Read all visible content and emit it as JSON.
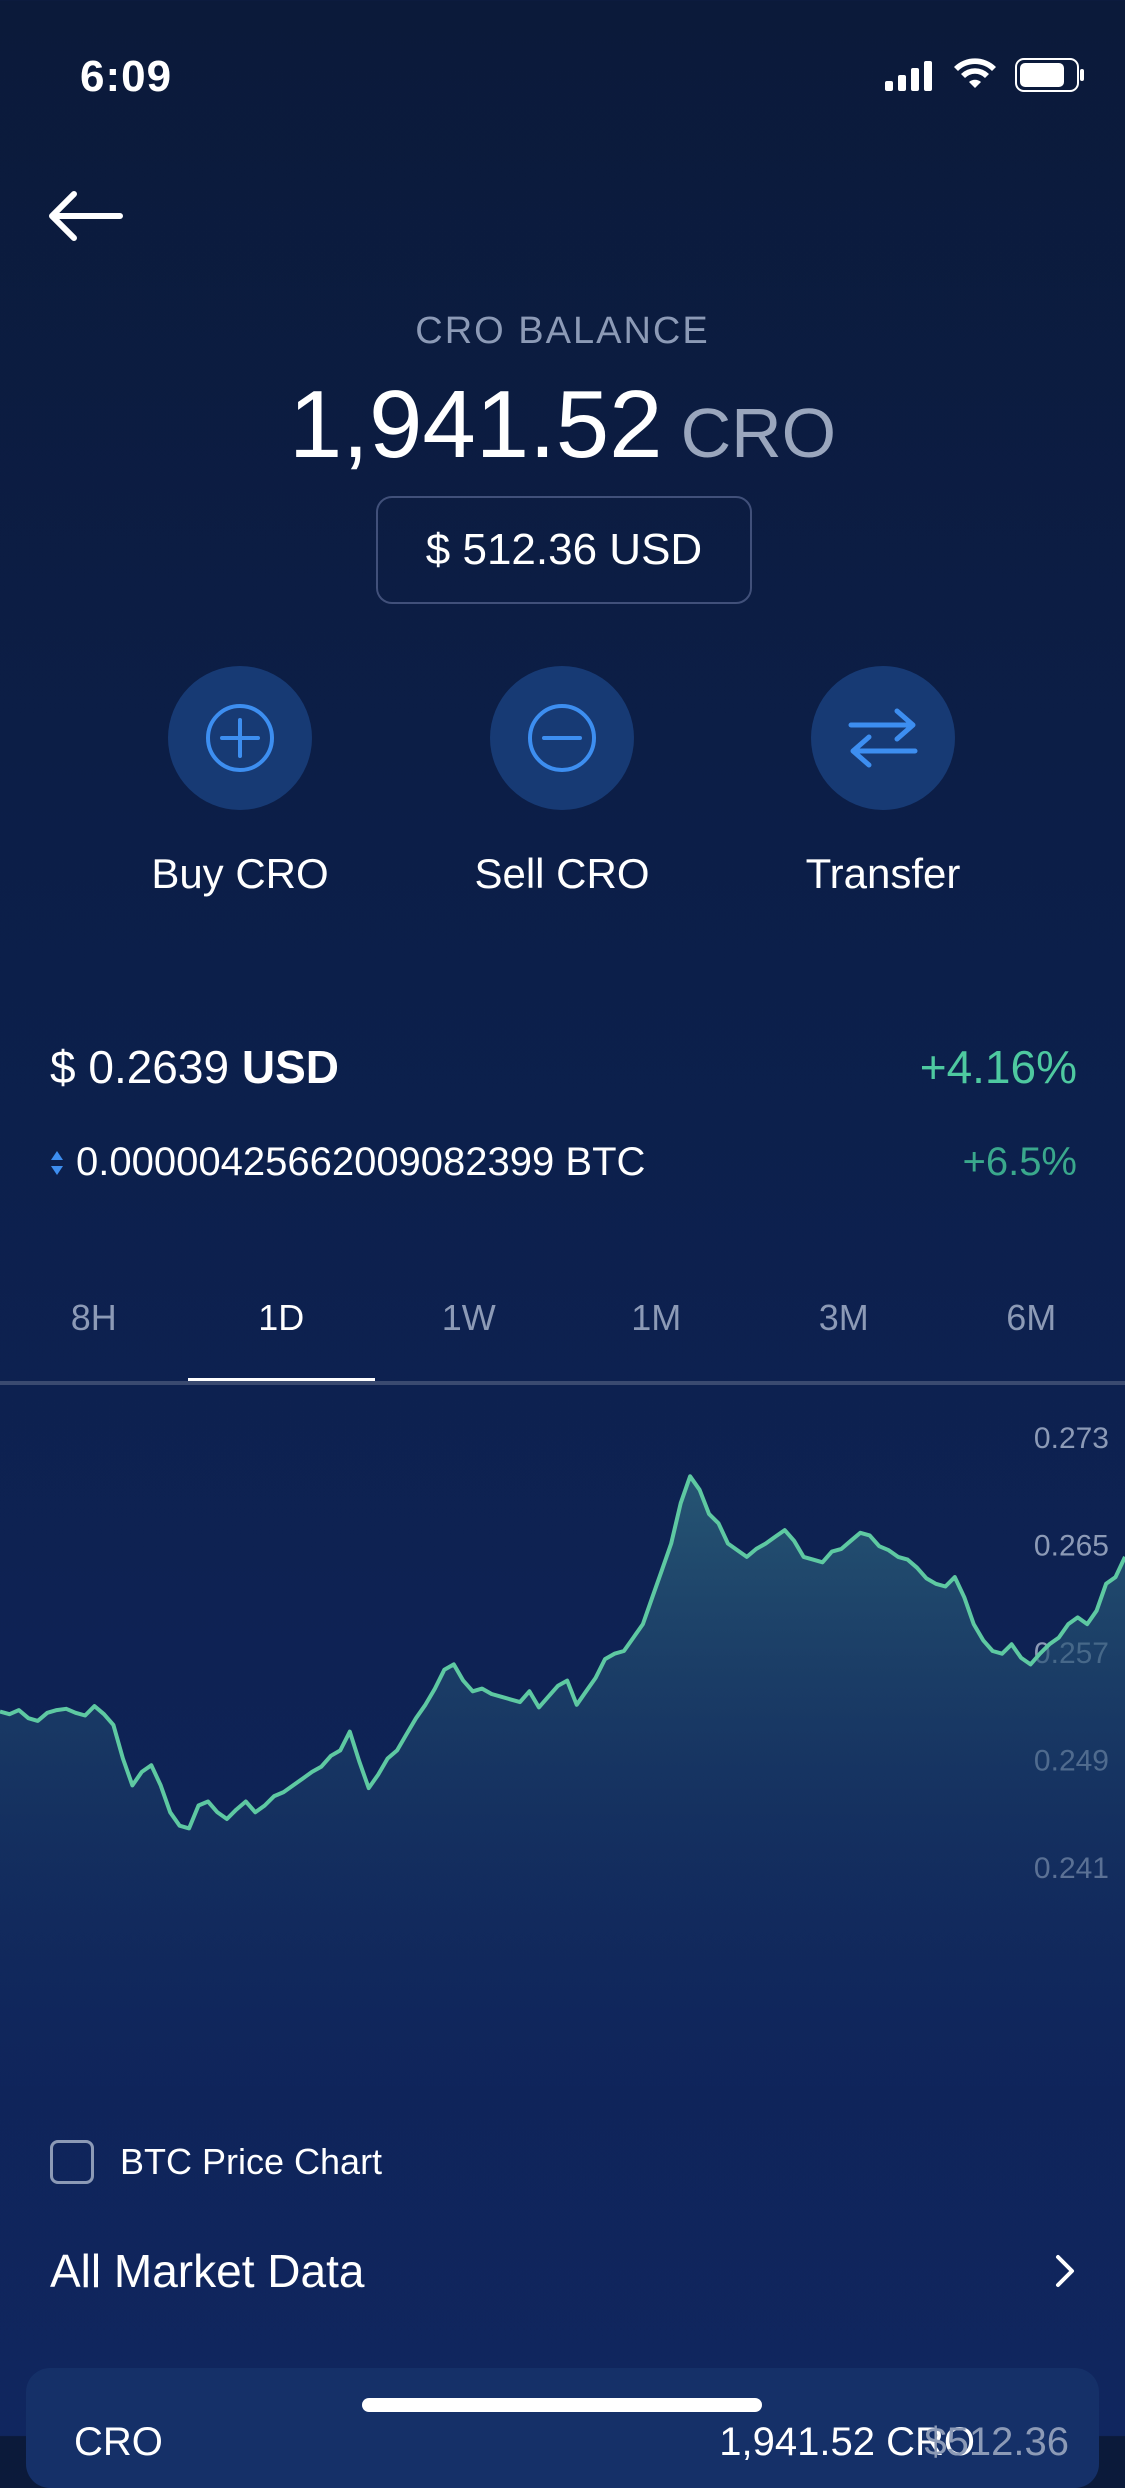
{
  "status_bar": {
    "time": "6:09",
    "icons": [
      "signal-icon",
      "wifi-icon",
      "battery-icon"
    ]
  },
  "header": {
    "back_icon": "arrow-left-icon"
  },
  "balance": {
    "label": "CRO BALANCE",
    "amount": "1,941.52",
    "unit": "CRO",
    "usd_value": "$ 512.36 USD"
  },
  "actions": [
    {
      "label": "Buy CRO",
      "icon": "plus-circle-icon"
    },
    {
      "label": "Sell CRO",
      "icon": "minus-circle-icon"
    },
    {
      "label": "Transfer",
      "icon": "transfer-arrows-icon"
    }
  ],
  "price": {
    "usd_value": "$ 0.2639",
    "usd_unit": "USD",
    "usd_change": "+4.16%",
    "btc_value": "0.0000042566200908​2399 BTC",
    "btc_change": "+6.5%"
  },
  "tabs": [
    "8H",
    "1D",
    "1W",
    "1M",
    "3M",
    "6M"
  ],
  "active_tab": "1D",
  "chart_data": {
    "type": "area",
    "series": [
      {
        "values": [
          0.2525,
          0.2523,
          0.2526,
          0.252,
          0.2518,
          0.2524,
          0.2526,
          0.2527,
          0.2524,
          0.2522,
          0.2529,
          0.2523,
          0.2515,
          0.249,
          0.247,
          0.248,
          0.2485,
          0.247,
          0.245,
          0.244,
          0.2438,
          0.2455,
          0.2458,
          0.245,
          0.2445,
          0.2452,
          0.2458,
          0.245,
          0.2455,
          0.2462,
          0.2465,
          0.247,
          0.2475,
          0.248,
          0.2484,
          0.2492,
          0.2496,
          0.251,
          0.2488,
          0.2468,
          0.2478,
          0.249,
          0.2496,
          0.2508,
          0.252,
          0.253,
          0.2542,
          0.2556,
          0.256,
          0.2548,
          0.254,
          0.2542,
          0.2538,
          0.2536,
          0.2534,
          0.2532,
          0.254,
          0.2528,
          0.2536,
          0.2544,
          0.2548,
          0.253,
          0.254,
          0.255,
          0.2564,
          0.2568,
          0.257,
          0.258,
          0.259,
          0.261,
          0.263,
          0.265,
          0.268,
          0.27,
          0.269,
          0.2672,
          0.2665,
          0.265,
          0.2645,
          0.264,
          0.2646,
          0.265,
          0.2655,
          0.266,
          0.2652,
          0.264,
          0.2638,
          0.2636,
          0.2644,
          0.2646,
          0.2652,
          0.2658,
          0.2656,
          0.2648,
          0.2645,
          0.264,
          0.2638,
          0.2632,
          0.2624,
          0.262,
          0.2618,
          0.2625,
          0.261,
          0.259,
          0.2578,
          0.257,
          0.2568,
          0.2575,
          0.2565,
          0.256,
          0.2568,
          0.2575,
          0.258,
          0.259,
          0.2595,
          0.259,
          0.26,
          0.262,
          0.2625,
          0.264
        ]
      }
    ],
    "y_ticks": [
      "0.273",
      "0.265",
      "0.257",
      "0.249",
      "0.241"
    ],
    "ylim": [
      0.241,
      0.273
    ],
    "line_color": "#5ec9a2",
    "fill_color": "#2a5e79"
  },
  "btc_chart_toggle": {
    "label": "BTC Price Chart",
    "checked": false
  },
  "market": {
    "label": "All Market Data",
    "icon": "chevron-right-icon"
  },
  "bottom_card": {
    "left": "CRO",
    "amount": "1,941.52 CRO",
    "usd": "$512.36"
  },
  "colors": {
    "accent": "#3d8ef0",
    "positive": "#4ec9a0",
    "background": "#0c1f4a"
  }
}
